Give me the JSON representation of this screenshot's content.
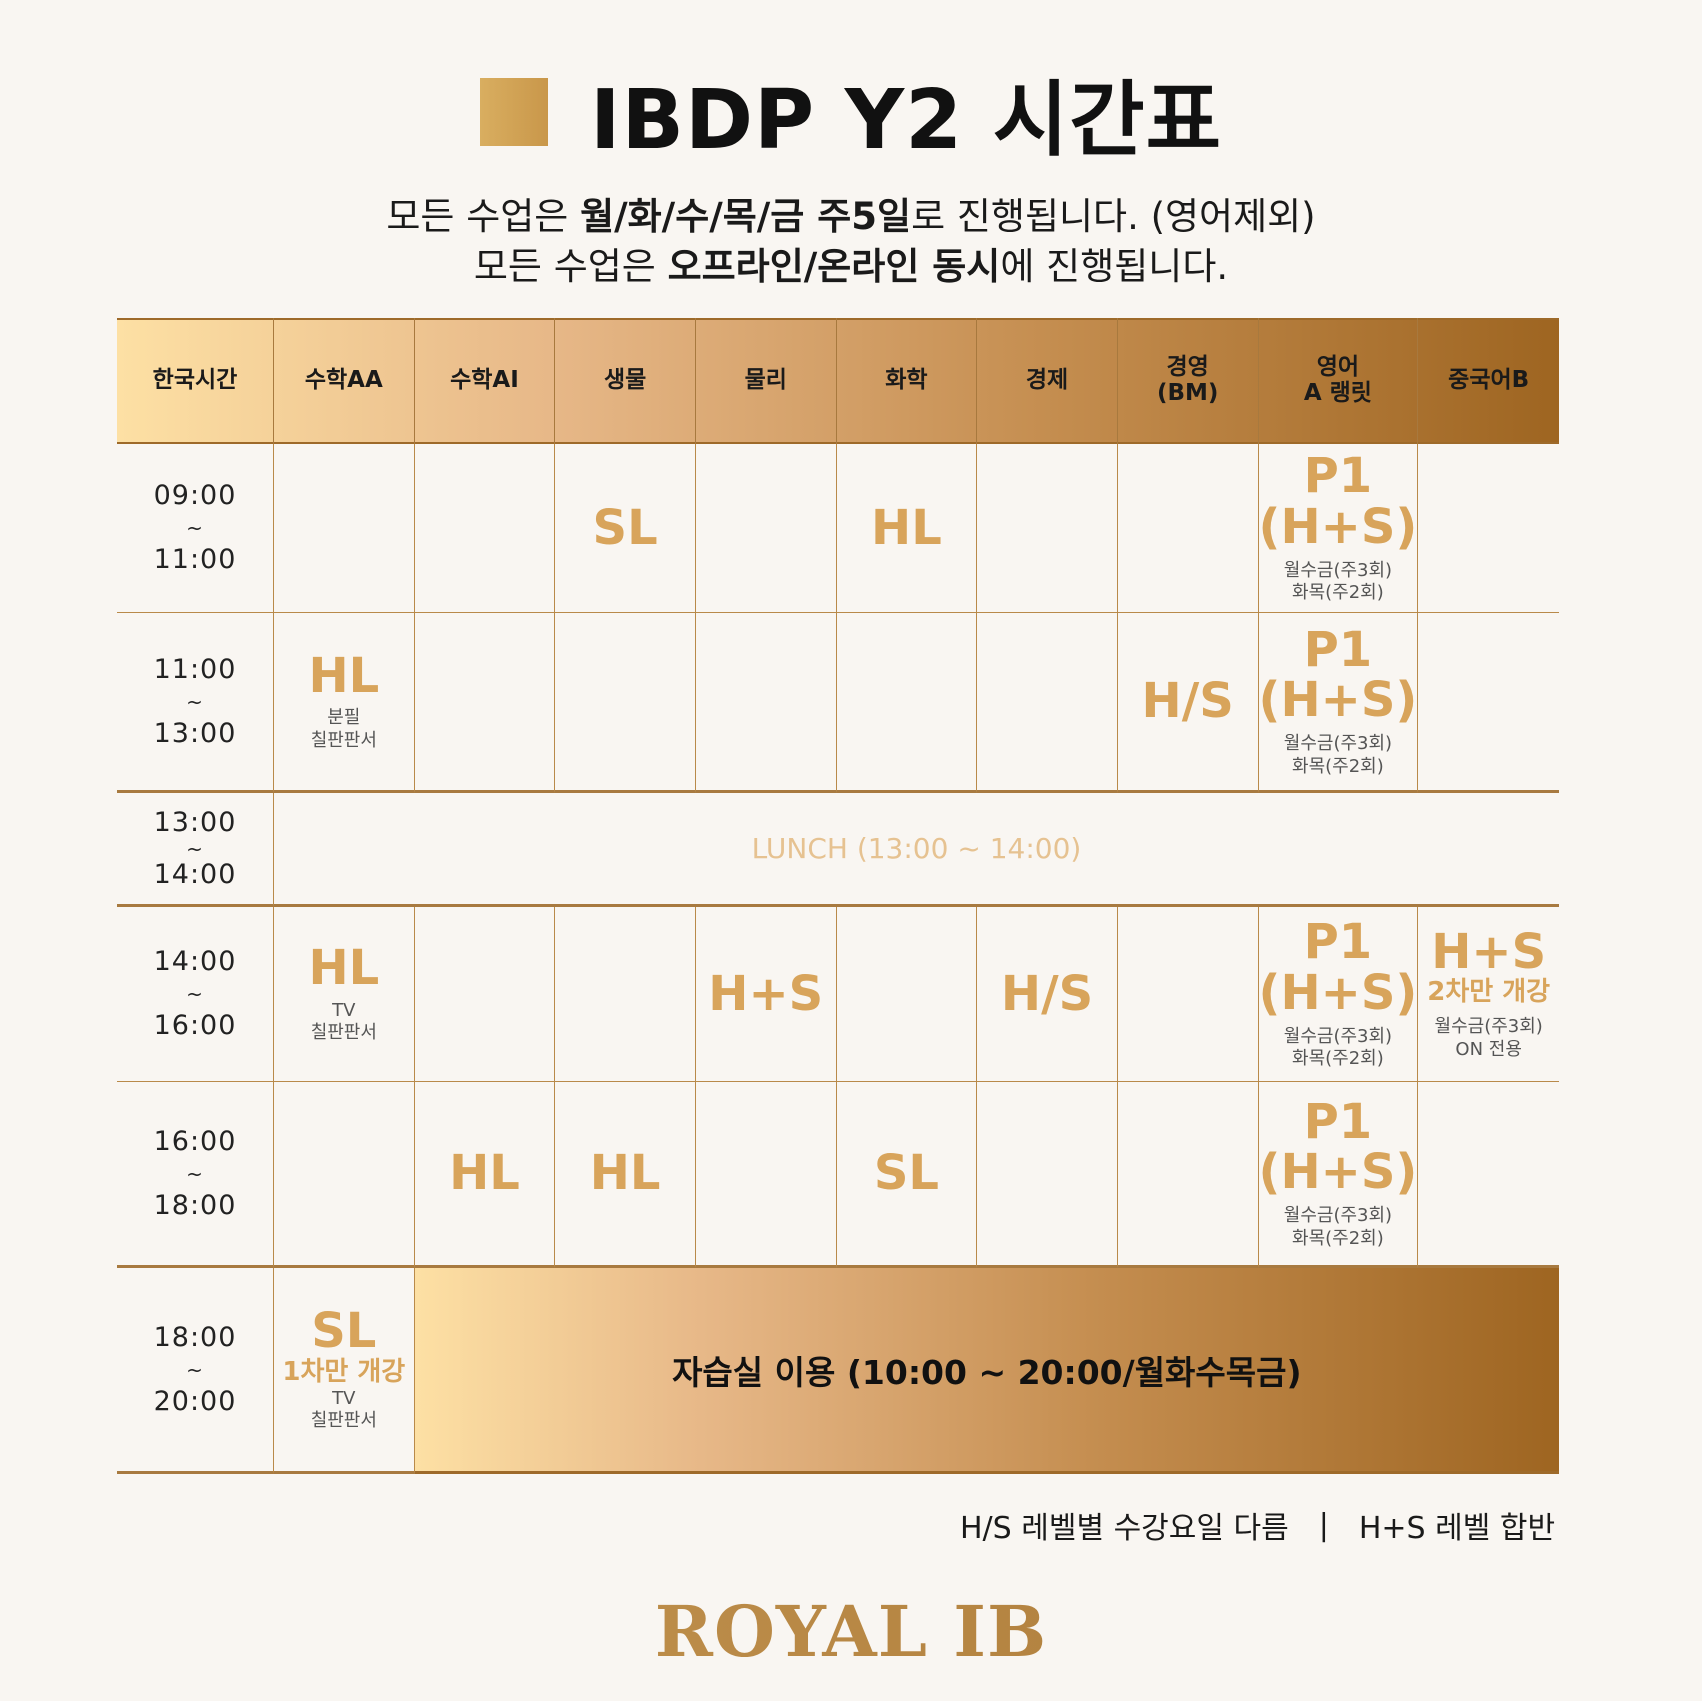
{
  "title": "IBDP Y2 시간표",
  "subtitle1": {
    "pre": "모든 수업은 ",
    "bold1": "월/화/수/목/금 주5일",
    "post": "로 진행됩니다. (영어제외)"
  },
  "subtitle2": {
    "pre": "모든 수업은 ",
    "bold1": "오프라인/온라인 동시",
    "post": "에 진행됩니다."
  },
  "headers": [
    "한국시간",
    "수학AA",
    "수학AI",
    "생물",
    "물리",
    "화학",
    "경제",
    "경영\n(BM)",
    "영어\nA 랭릿",
    "중국어B"
  ],
  "times": [
    {
      "start": "09:00",
      "tilde": "~",
      "end": "11:00"
    },
    {
      "start": "11:00",
      "tilde": "~",
      "end": "13:00"
    },
    {
      "start": "13:00",
      "tilde": "~",
      "end": "14:00"
    },
    {
      "start": "14:00",
      "tilde": "~",
      "end": "16:00"
    },
    {
      "start": "16:00",
      "tilde": "~",
      "end": "18:00"
    },
    {
      "start": "18:00",
      "tilde": "~",
      "end": "20:00"
    }
  ],
  "cells": {
    "r1_bio": "SL",
    "r1_chem": "HL",
    "r1_eng": {
      "big": "P1\n(H+S)",
      "note": "월수금(주3회)\n화목(주2회)"
    },
    "r2_mathaa": {
      "big": "HL",
      "note": "분필\n칠판판서"
    },
    "r2_bm": "H/S",
    "r2_eng": {
      "big": "P1\n(H+S)",
      "note": "월수금(주3회)\n화목(주2회)"
    },
    "lunch": "LUNCH (13:00 ~ 14:00)",
    "r4_mathaa": {
      "big": "HL",
      "note": "TV\n칠판판서"
    },
    "r4_phys": "H+S",
    "r4_econ": "H/S",
    "r4_eng": {
      "big": "P1\n(H+S)",
      "note": "월수금(주3회)\n화목(주2회)"
    },
    "r4_chinese": {
      "big": "H+S",
      "mid": "2차만 개강",
      "note": "월수금(주3회)\nON 전용"
    },
    "r5_mathai": "HL",
    "r5_bio": "HL",
    "r5_chem": "SL",
    "r5_eng": {
      "big": "P1\n(H+S)",
      "note": "월수금(주3회)\n화목(주2회)"
    },
    "r6_mathaa": {
      "big": "SL",
      "mid": "1차만 개강",
      "note": "TV\n칠판판서"
    },
    "study": "자습실 이용 (10:00 ~ 20:00/월화수목금)"
  },
  "legend": {
    "item1": "H/S 레벨별 수강요일 다름",
    "separator": "|",
    "item2": "H+S 레벨 합반"
  },
  "brand": "ROYAL IB",
  "colors": {
    "accent": "#d8a45b",
    "gradient_start": "#fde0a4",
    "gradient_end": "#9e6521",
    "background": "#f9f6f2"
  }
}
